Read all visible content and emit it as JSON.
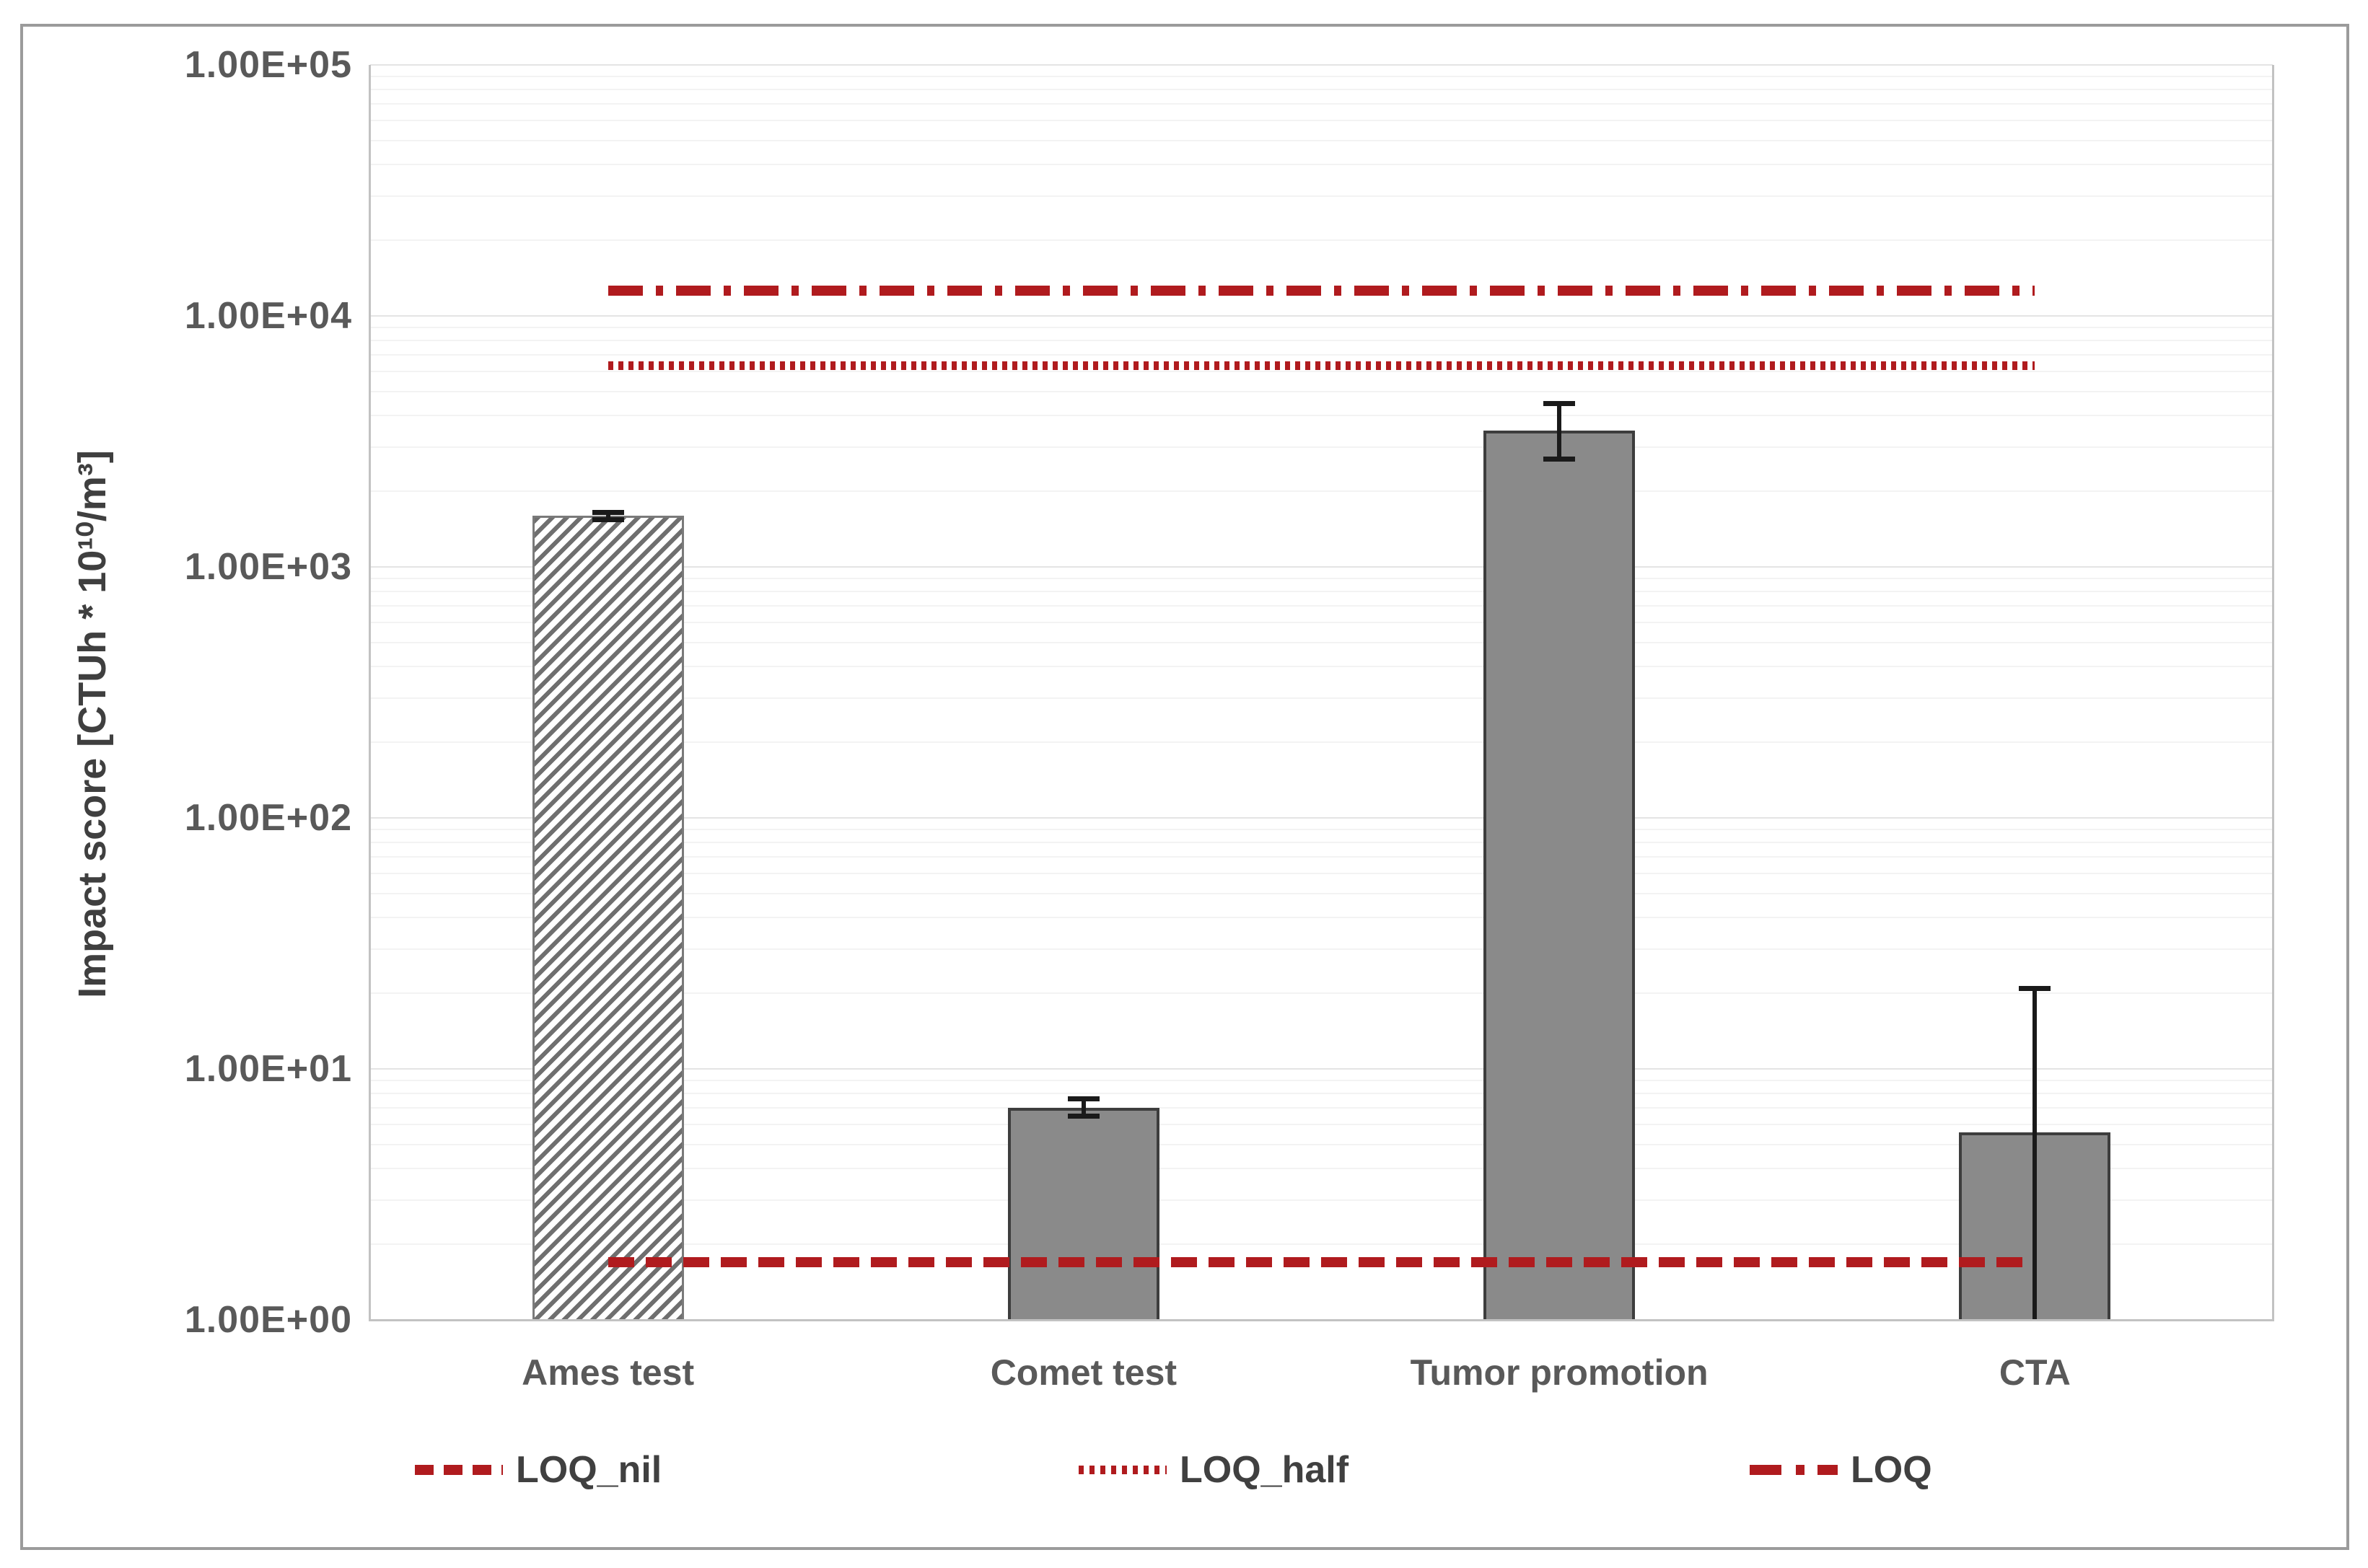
{
  "chart_data": {
    "type": "bar",
    "title": "",
    "xlabel": "",
    "ylabel": "Impact score [CTUh * 10¹⁰/m³]",
    "y_scale": "log",
    "ylim": [
      1,
      100000
    ],
    "y_ticks": [
      "1.00E+00",
      "1.00E+01",
      "1.00E+02",
      "1.00E+03",
      "1.00E+04",
      "1.00E+05"
    ],
    "categories": [
      "Ames test",
      "Comet test",
      "Tumor promotion",
      "CTA"
    ],
    "series": [
      {
        "name": "Impact score",
        "values": [
          1600,
          7.0,
          3500,
          5.6
        ],
        "error_high": [
          1650,
          7.6,
          4500,
          21
        ],
        "error_low": [
          1550,
          6.5,
          2700,
          1.0
        ],
        "bar_styles": [
          "hatched",
          "solid",
          "solid",
          "solid"
        ]
      }
    ],
    "reference_lines": [
      {
        "label": "LOQ_nil",
        "value": 1.7,
        "style": "dashed"
      },
      {
        "label": "LOQ_half",
        "value": 6300,
        "style": "dotted"
      },
      {
        "label": "LOQ",
        "value": 12600,
        "style": "dashdot"
      }
    ],
    "legend": [
      {
        "label": "LOQ_nil",
        "style": "dashed"
      },
      {
        "label": "LOQ_half",
        "style": "dotted"
      },
      {
        "label": "LOQ",
        "style": "dashdot"
      }
    ],
    "legend_position": "bottom",
    "grid": true,
    "colors": {
      "bar_fill": "#8a8a8a",
      "bar_border": "#3d3d3d",
      "hatch_stripe": "#6f6f6f",
      "reference": "#b01b1e",
      "error_bar": "#1a1a1a",
      "tick_text": "#595959",
      "legend_text": "#404040"
    }
  }
}
